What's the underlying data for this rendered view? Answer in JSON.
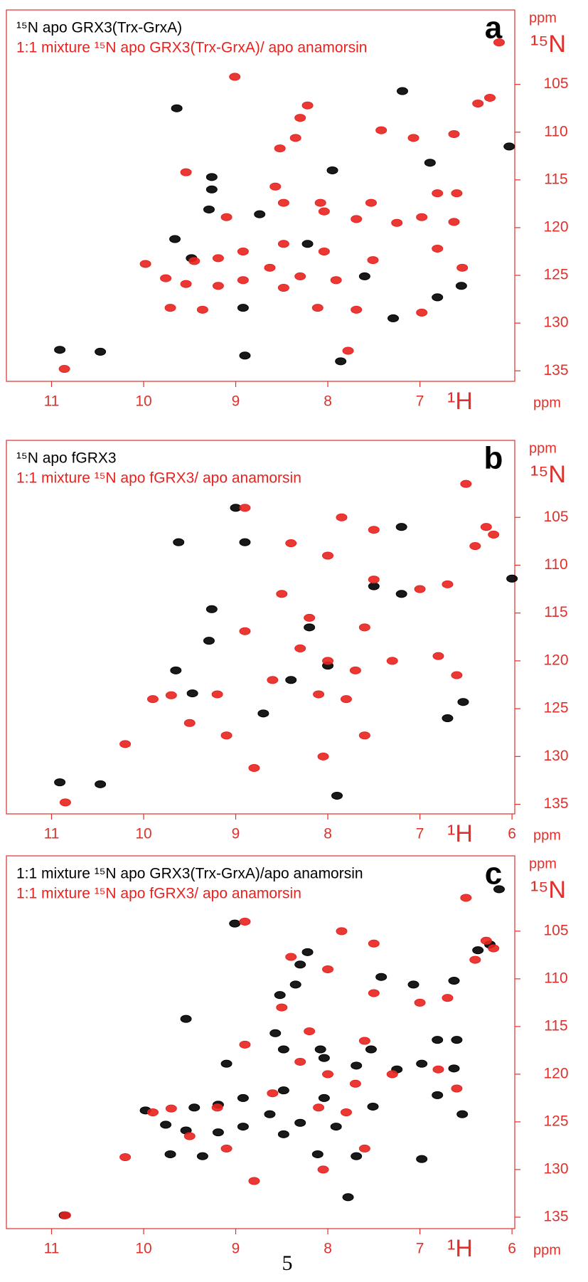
{
  "chart_data": [
    {
      "type": "scatter",
      "panel_label": "a",
      "x_label": "¹H",
      "y_label": "¹⁵N",
      "x_unit": "ppm",
      "y_unit": "ppm",
      "xlim": [
        11.49,
        5.97
      ],
      "ylim": [
        97.2,
        136.1
      ],
      "xticks": [
        11,
        10,
        9,
        8,
        7
      ],
      "yticks": [
        105,
        110,
        115,
        120,
        125,
        130,
        135
      ],
      "series": [
        {
          "name": "¹⁵N apo GRX3(Trx-GrxA)",
          "color": "#000000",
          "x": [
            9.64,
            9.26,
            9.26,
            9.29,
            9.66,
            9.48,
            7.19,
            6.03,
            6.81,
            6.55,
            7.29,
            10.91,
            10.47,
            8.9,
            7.86,
            7.6,
            8.74,
            8.22,
            7.95,
            6.89,
            8.92
          ],
          "y": [
            107.5,
            114.7,
            116.0,
            118.1,
            121.2,
            123.2,
            105.7,
            111.5,
            127.3,
            126.1,
            129.5,
            132.8,
            133.0,
            133.4,
            134.0,
            125.1,
            118.6,
            121.7,
            114.0,
            113.2,
            128.4
          ]
        },
        {
          "name": "1:1 mixture ¹⁵N apo GRX3(Trx-GrxA)/ apo anamorsin",
          "color": "#e8231f",
          "x": [
            9.01,
            8.22,
            8.3,
            8.52,
            8.35,
            7.42,
            7.07,
            6.63,
            6.37,
            6.24,
            6.14,
            9.54,
            8.57,
            6.81,
            6.6,
            7.53,
            8.08,
            8.48,
            9.1,
            8.04,
            7.69,
            7.25,
            6.98,
            6.63,
            8.48,
            8.04,
            9.98,
            9.45,
            9.19,
            8.92,
            8.63,
            8.3,
            7.91,
            7.51,
            6.81,
            6.54,
            9.76,
            9.54,
            9.19,
            8.92,
            8.48,
            8.11,
            7.69,
            6.98,
            9.71,
            9.36,
            10.86,
            7.78
          ],
          "y": [
            104.2,
            107.2,
            108.5,
            111.7,
            110.6,
            109.8,
            110.6,
            110.2,
            107.0,
            106.4,
            100.6,
            114.2,
            115.7,
            116.4,
            116.4,
            117.4,
            117.4,
            117.4,
            118.9,
            118.3,
            119.1,
            119.5,
            118.9,
            119.4,
            121.7,
            122.5,
            123.8,
            123.5,
            123.2,
            122.5,
            124.2,
            125.1,
            125.5,
            123.4,
            122.2,
            124.2,
            125.3,
            125.9,
            126.1,
            125.5,
            126.3,
            128.4,
            128.6,
            128.9,
            128.4,
            128.6,
            134.8,
            132.9
          ]
        }
      ]
    },
    {
      "type": "scatter",
      "panel_label": "b",
      "x_label": "¹H",
      "y_label": "¹⁵N",
      "x_unit": "ppm",
      "y_unit": "ppm",
      "xlim": [
        11.49,
        5.97
      ],
      "ylim": [
        96.95,
        136.0
      ],
      "xticks": [
        11,
        10,
        9,
        8,
        7,
        6
      ],
      "yticks": [
        105,
        110,
        115,
        120,
        125,
        130,
        135
      ],
      "series": [
        {
          "name": "¹⁵N apo fGRX3",
          "color": "#000000",
          "x": [
            9.0,
            8.9,
            9.62,
            9.26,
            9.29,
            9.65,
            9.47,
            7.2,
            6.0,
            6.7,
            6.53,
            7.9,
            10.91,
            10.47,
            8.2,
            8.0,
            7.5,
            7.2,
            8.7,
            8.4
          ],
          "y": [
            104.0,
            107.6,
            107.6,
            114.6,
            117.9,
            121.0,
            123.4,
            106.0,
            111.4,
            126.0,
            124.3,
            134.1,
            132.7,
            132.9,
            116.5,
            120.5,
            112.2,
            113.0,
            125.5,
            122.0
          ]
        },
        {
          "name": "1:1 mixture ¹⁵N apo fGRX3/ apo anamorsin",
          "color": "#e8231f",
          "x": [
            6.5,
            6.28,
            6.4,
            7.85,
            8.9,
            8.4,
            8.0,
            7.5,
            7.0,
            6.7,
            8.5,
            8.9,
            8.2,
            7.6,
            6.8,
            6.6,
            8.3,
            8.0,
            7.7,
            7.3,
            8.6,
            8.1,
            7.8,
            9.2,
            9.7,
            10.2,
            9.5,
            9.1,
            8.8,
            7.6,
            9.9,
            10.85,
            7.5,
            6.2,
            8.05
          ],
          "y": [
            101.5,
            106.0,
            108.0,
            105.0,
            104.0,
            107.7,
            109.0,
            111.5,
            112.5,
            112.0,
            113.0,
            116.9,
            115.5,
            116.5,
            119.5,
            121.5,
            118.7,
            120.0,
            121.0,
            120.0,
            122.0,
            123.5,
            124.0,
            123.5,
            123.6,
            128.7,
            126.5,
            127.8,
            131.2,
            127.8,
            124.0,
            134.8,
            106.3,
            106.8,
            130.0
          ]
        }
      ]
    },
    {
      "type": "scatter",
      "panel_label": "c",
      "x_label": "¹H",
      "y_label": "¹⁵N",
      "x_unit": "ppm",
      "y_unit": "ppm",
      "xlim": [
        11.49,
        5.97
      ],
      "ylim": [
        97.1,
        136.2
      ],
      "xticks": [
        11,
        10,
        9,
        8,
        7,
        6
      ],
      "yticks": [
        105,
        110,
        115,
        120,
        125,
        130,
        135
      ],
      "series": [
        {
          "name": "1:1 mixture ¹⁵N apo GRX3(Trx-GrxA)/apo anamorsin",
          "color": "#000000",
          "x": [
            9.01,
            8.22,
            8.3,
            8.52,
            8.35,
            7.42,
            7.07,
            6.63,
            6.37,
            6.24,
            6.14,
            9.54,
            8.57,
            6.81,
            6.6,
            7.53,
            8.08,
            8.48,
            9.1,
            8.04,
            7.69,
            7.25,
            6.98,
            6.63,
            8.48,
            8.04,
            9.98,
            9.45,
            9.19,
            8.92,
            8.63,
            8.3,
            7.91,
            7.51,
            6.81,
            6.54,
            9.76,
            9.54,
            9.19,
            8.92,
            8.48,
            8.11,
            7.69,
            6.98,
            9.71,
            9.36,
            10.86,
            7.78
          ],
          "y": [
            104.2,
            107.2,
            108.5,
            111.7,
            110.6,
            109.8,
            110.6,
            110.2,
            107.0,
            106.4,
            100.6,
            114.2,
            115.7,
            116.4,
            116.4,
            117.4,
            117.4,
            117.4,
            118.9,
            118.3,
            119.1,
            119.5,
            118.9,
            119.4,
            121.7,
            122.5,
            123.8,
            123.5,
            123.2,
            122.5,
            124.2,
            125.1,
            125.5,
            123.4,
            122.2,
            124.2,
            125.3,
            125.9,
            126.1,
            125.5,
            126.3,
            128.4,
            128.6,
            128.9,
            128.4,
            128.6,
            134.8,
            132.9
          ]
        },
        {
          "name": "1:1 mixture ¹⁵N apo fGRX3/ apo anamorsin",
          "color": "#e8231f",
          "x": [
            6.5,
            6.28,
            6.4,
            7.85,
            8.9,
            8.4,
            8.0,
            7.5,
            7.0,
            6.7,
            8.5,
            8.9,
            8.2,
            7.6,
            6.8,
            6.6,
            8.3,
            8.0,
            7.7,
            7.3,
            8.6,
            8.1,
            7.8,
            9.2,
            9.7,
            10.2,
            9.5,
            9.1,
            8.8,
            7.6,
            9.9,
            10.85,
            7.5,
            6.2,
            8.05
          ],
          "y": [
            101.5,
            106.0,
            108.0,
            105.0,
            104.0,
            107.7,
            109.0,
            111.5,
            112.5,
            112.0,
            113.0,
            116.9,
            115.5,
            116.5,
            119.5,
            121.5,
            118.7,
            120.0,
            121.0,
            120.0,
            122.0,
            123.5,
            124.0,
            123.5,
            123.6,
            128.7,
            126.5,
            127.8,
            131.2,
            127.8,
            124.0,
            134.8,
            106.3,
            106.8,
            130.0
          ]
        }
      ]
    }
  ],
  "page_number": "5"
}
